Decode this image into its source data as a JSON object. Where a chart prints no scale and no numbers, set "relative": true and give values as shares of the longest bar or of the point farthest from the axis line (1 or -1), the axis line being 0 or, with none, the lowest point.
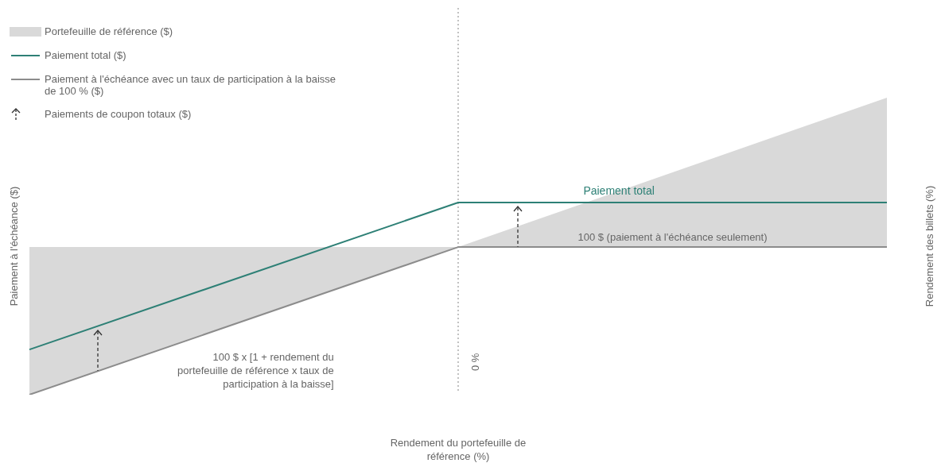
{
  "chart_data": {
    "type": "line",
    "relative": true,
    "categories": [
      null,
      null,
      null
    ],
    "legend": "top left",
    "marker": "none",
    "xlabel": "Rendement du portefeuille de référence (%)",
    "ylabel": "Paiement à l'échéance ($)",
    "y2label": "Rendement des billets (%)",
    "series": [
      {
        "name": "Portefeuille de référence ($)",
        "type": "area",
        "color": "#d9d9d9",
        "values": [
          0,
          0.497,
          1
        ]
      },
      {
        "name": "Paiement total ($)",
        "color": "#2e8076",
        "values": [
          0.152,
          0.647,
          0.647
        ]
      },
      {
        "name": "Paiement à l'échéance avec un taux de participation à la baisse de 100 % ($)",
        "color": "#8c8c8c",
        "values": [
          0,
          0.497,
          0.497
        ]
      }
    ],
    "annotations": [
      "0 %",
      "Paiement total",
      "100 $ (paiement à l'échéance seulement)",
      "100 $ x [1 + rendement du portefeuille de référence x taux de participation à la baisse]",
      "Paiements de coupon totaux ($)"
    ]
  }
}
